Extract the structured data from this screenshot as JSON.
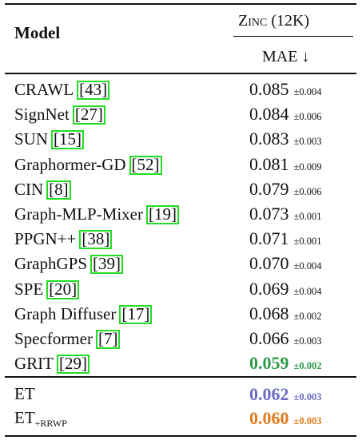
{
  "header": {
    "model": "Model",
    "dataset": "Zinc (12K)",
    "metric": "MAE ↓"
  },
  "rows": [
    {
      "name": "CRAWL",
      "ref": "[43]",
      "mae": "0.085",
      "std": "±0.004"
    },
    {
      "name": "SignNet",
      "ref": "[27]",
      "mae": "0.084",
      "std": "±0.006"
    },
    {
      "name": "SUN",
      "ref": "[15]",
      "mae": "0.083",
      "std": "±0.003"
    },
    {
      "name": "Graphormer-GD",
      "ref": "[52]",
      "mae": "0.081",
      "std": "±0.009"
    },
    {
      "name": "CIN",
      "ref": "[8]",
      "mae": "0.079",
      "std": "±0.006"
    },
    {
      "name": "Graph-MLP-Mixer",
      "ref": "[19]",
      "mae": "0.073",
      "std": "±0.001"
    },
    {
      "name": "PPGN++",
      "ref": "[38]",
      "mae": "0.071",
      "std": "±0.001"
    },
    {
      "name": "GraphGPS",
      "ref": "[39]",
      "mae": "0.070",
      "std": "±0.004"
    },
    {
      "name": "SPE",
      "ref": "[20]",
      "mae": "0.069",
      "std": "±0.004"
    },
    {
      "name": "Graph Diffuser",
      "ref": "[17]",
      "mae": "0.068",
      "std": "±0.002"
    },
    {
      "name": "Specformer",
      "ref": "[7]",
      "mae": "0.066",
      "std": "±0.003"
    },
    {
      "name": "GRIT",
      "ref": "[29]",
      "mae": "0.059",
      "std": "±0.002",
      "color": "#2e9a4a"
    }
  ],
  "ours": [
    {
      "name": "ET",
      "mae": "0.062",
      "std": "±0.003",
      "color": "#6b6bc4"
    },
    {
      "name": "ET",
      "subscript": "+RRWP",
      "mae": "0.060",
      "std": "±0.003",
      "color": "#e07a1c"
    }
  ]
}
